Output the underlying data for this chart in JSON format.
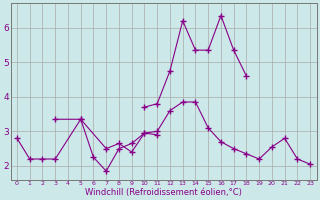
{
  "xlabel": "Windchill (Refroidissement éolien,°C)",
  "background_color": "#cce8e8",
  "grid_color": "#aaaaaa",
  "line_color": "#880088",
  "line1_x": [
    0,
    1,
    2,
    3,
    5,
    6,
    7,
    8,
    9,
    10,
    11
  ],
  "line1_y": [
    2.8,
    2.2,
    2.2,
    2.2,
    3.35,
    2.25,
    1.85,
    2.5,
    2.65,
    2.95,
    2.9
  ],
  "line2_x": [
    3,
    5,
    7,
    8,
    9,
    10,
    11,
    12,
    13,
    14,
    15,
    16,
    17,
    18,
    19,
    20,
    21,
    22,
    23
  ],
  "line2_y": [
    3.35,
    3.35,
    2.5,
    2.65,
    2.4,
    2.95,
    3.0,
    3.6,
    3.85,
    3.85,
    3.1,
    2.7,
    2.5,
    2.35,
    2.2,
    2.55,
    2.8,
    2.2,
    2.05
  ],
  "line3_x": [
    10,
    11,
    12,
    13,
    14,
    15,
    16,
    17,
    18
  ],
  "line3_y": [
    3.7,
    3.8,
    4.75,
    6.2,
    5.35,
    5.35,
    6.35,
    5.35,
    4.6
  ],
  "ylim": [
    1.6,
    6.7
  ],
  "xlim": [
    -0.5,
    23.5
  ],
  "yticks": [
    2,
    3,
    4,
    5,
    6
  ]
}
